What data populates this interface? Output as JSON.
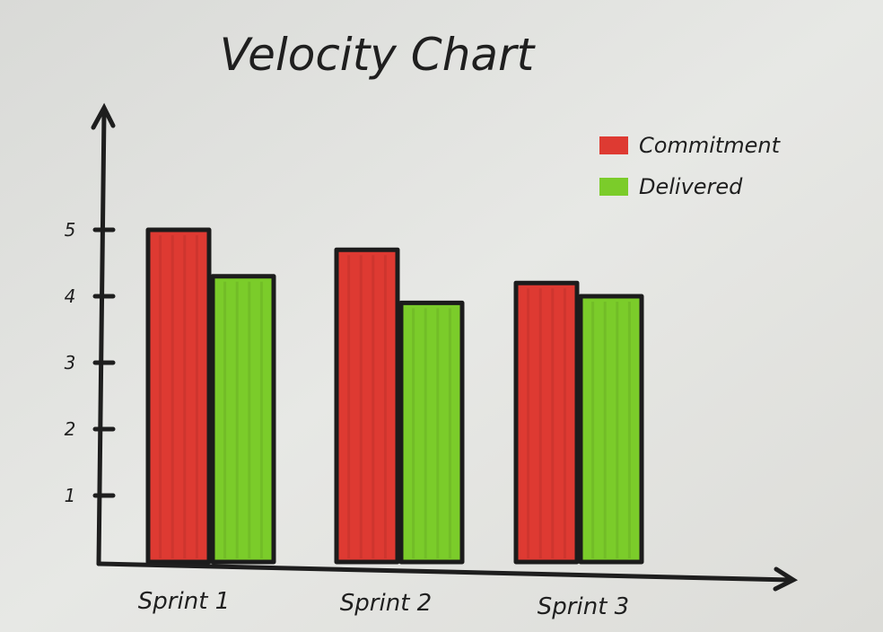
{
  "chart_data": {
    "type": "bar",
    "title": "Velocity Chart",
    "categories": [
      "Sprint 1",
      "Sprint 2",
      "Sprint 3"
    ],
    "series": [
      {
        "name": "Commitment",
        "values": [
          5.0,
          4.7,
          4.2
        ],
        "color": "#de3a32"
      },
      {
        "name": "Delivered",
        "values": [
          4.3,
          3.9,
          4.0
        ],
        "color": "#7bcc2a"
      }
    ],
    "y_ticks": [
      "1",
      "2",
      "3",
      "4",
      "5"
    ],
    "ylim": [
      0,
      5
    ],
    "xlabel": "",
    "ylabel": "",
    "grid": false,
    "legend_position": "top-right"
  }
}
